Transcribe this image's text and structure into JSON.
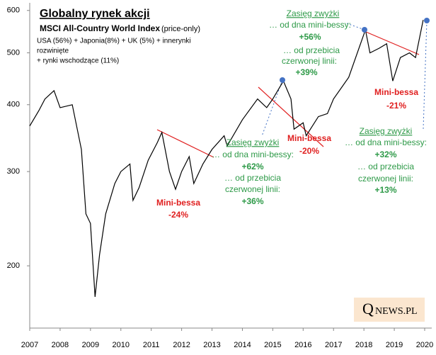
{
  "chart_data": {
    "type": "line",
    "title": "Globalny  rynek akcji",
    "subtitle": "MSCI All-Country World Index",
    "subtitle_note": "(price-only)",
    "description": [
      "USA (56%) + Japonia(8%) + UK (5%) + innerynki",
      "rozwinięte",
      "+ rynki wschodzące (11%)"
    ],
    "logo_initial": "Q",
    "logo_rest": "NEWS.PL",
    "color": "#000000",
    "log_y": true,
    "grid": false,
    "xlim": [
      2007,
      2020
    ],
    "xticks": [
      2007,
      2008,
      2009,
      2010,
      2011,
      2012,
      2013,
      2014,
      2015,
      2016,
      2017,
      2018,
      2019,
      2020
    ],
    "ylim": [
      153,
      620
    ],
    "yticks": [
      200,
      300,
      400,
      500,
      600
    ],
    "x": [
      2007.0,
      2007.3,
      2007.5,
      2007.8,
      2008.0,
      2008.4,
      2008.7,
      2008.85,
      2009.0,
      2009.15,
      2009.3,
      2009.5,
      2009.8,
      2010.0,
      2010.3,
      2010.4,
      2010.6,
      2010.9,
      2011.2,
      2011.35,
      2011.6,
      2011.8,
      2012.0,
      2012.25,
      2012.4,
      2012.7,
      2013.0,
      2013.4,
      2013.5,
      2014.0,
      2014.5,
      2014.8,
      2015.0,
      2015.35,
      2015.6,
      2015.7,
      2016.0,
      2016.1,
      2016.5,
      2016.8,
      2017.0,
      2017.5,
      2018.05,
      2018.2,
      2018.5,
      2018.75,
      2018.95,
      2019.2,
      2019.5,
      2019.7,
      2019.95
    ],
    "values": [
      365,
      390,
      410,
      425,
      395,
      400,
      330,
      250,
      240,
      175,
      210,
      250,
      285,
      300,
      310,
      265,
      280,
      315,
      340,
      355,
      300,
      278,
      300,
      320,
      285,
      310,
      330,
      350,
      335,
      375,
      410,
      395,
      410,
      443,
      410,
      360,
      370,
      350,
      380,
      385,
      410,
      450,
      552,
      500,
      510,
      520,
      443,
      490,
      500,
      490,
      576
    ],
    "annotations": [
      "Zasięg zwyżki",
      "… od dna mini-bessy:",
      "+56%",
      "… od przebicia",
      "czerwonej linii:",
      "+39%",
      "Mini-bessa",
      "-21%",
      "Mini-bessa",
      "-20%",
      "Zasięg zwyżki",
      "… od dna mini-bessy:",
      "+62%",
      "… od przebicia",
      "czerwonej linii:",
      "+36%",
      "Mini-bessa",
      "-24%",
      "Zasięg zwyżki",
      "… od dna mini-bessy:",
      "+32%",
      "… od przebicia",
      "czerwonej linii:",
      "+13%"
    ]
  }
}
